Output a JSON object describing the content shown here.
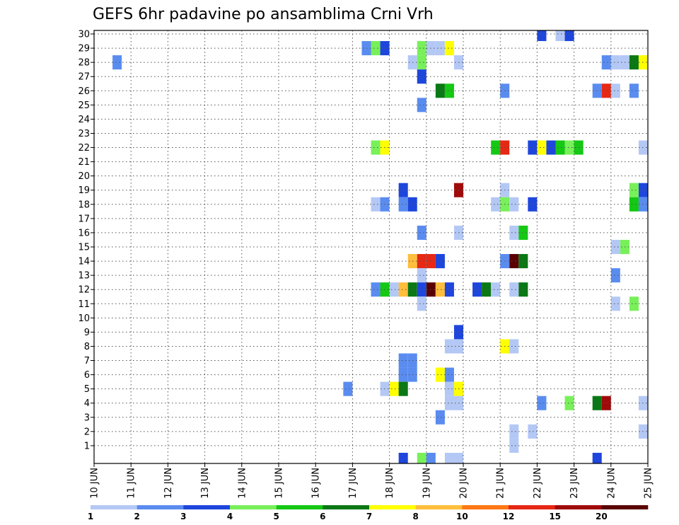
{
  "chart_data": {
    "type": "heatmap",
    "title": "GEFS 6hr padavine po ansamblima Crni Vrh",
    "xlabel": "",
    "ylabel": "",
    "x_ticks": [
      "10 JUN",
      "11 JUN",
      "12 JUN",
      "13 JUN",
      "14 JUN",
      "15 JUN",
      "16 JUN",
      "17 JUN",
      "18 JUN",
      "19 JUN",
      "20 JUN",
      "21 JUN",
      "22 JUN",
      "23 JUN",
      "24 JUN",
      "25 JUN"
    ],
    "y_ticks": [
      1,
      2,
      3,
      4,
      5,
      6,
      7,
      8,
      9,
      10,
      11,
      12,
      13,
      14,
      15,
      16,
      17,
      18,
      19,
      20,
      21,
      22,
      23,
      24,
      25,
      26,
      27,
      28,
      29,
      30
    ],
    "x_range_days": [
      0,
      15
    ],
    "y_range": [
      0,
      30
    ],
    "grid": true,
    "time_step_hours": 6,
    "colorbar": {
      "labels": [
        "1",
        "2",
        "3",
        "4",
        "5",
        "6",
        "7",
        "8",
        "10",
        "12",
        "15",
        "20"
      ],
      "colors": [
        "#b4c8f5",
        "#5a8cf0",
        "#1e46dc",
        "#78f05a",
        "#14c814",
        "#0a7814",
        "#ffff00",
        "#ffbe3c",
        "#ff7814",
        "#e62814",
        "#a00a0a",
        "#5a0000"
      ]
    },
    "cells": [
      {
        "member": 30,
        "day": 12.0,
        "level": 3
      },
      {
        "member": 30,
        "day": 12.5,
        "level": 1
      },
      {
        "member": 30,
        "day": 12.75,
        "level": 3
      },
      {
        "member": 29,
        "day": 7.25,
        "level": 2
      },
      {
        "member": 29,
        "day": 7.5,
        "level": 4
      },
      {
        "member": 29,
        "day": 7.75,
        "level": 3
      },
      {
        "member": 29,
        "day": 8.75,
        "level": 4
      },
      {
        "member": 29,
        "day": 9.0,
        "level": 1
      },
      {
        "member": 29,
        "day": 9.25,
        "level": 1
      },
      {
        "member": 29,
        "day": 9.5,
        "level": 7
      },
      {
        "member": 28,
        "day": 0.5,
        "level": 2
      },
      {
        "member": 28,
        "day": 8.5,
        "level": 1
      },
      {
        "member": 28,
        "day": 8.75,
        "level": 4
      },
      {
        "member": 28,
        "day": 9.75,
        "level": 1
      },
      {
        "member": 28,
        "day": 13.75,
        "level": 2
      },
      {
        "member": 28,
        "day": 14.0,
        "level": 1
      },
      {
        "member": 28,
        "day": 14.25,
        "level": 1
      },
      {
        "member": 28,
        "day": 14.5,
        "level": 6
      },
      {
        "member": 28,
        "day": 14.75,
        "level": 7
      },
      {
        "member": 27,
        "day": 8.75,
        "level": 3
      },
      {
        "member": 26,
        "day": 9.25,
        "level": 6
      },
      {
        "member": 26,
        "day": 9.5,
        "level": 5
      },
      {
        "member": 26,
        "day": 11.0,
        "level": 2
      },
      {
        "member": 26,
        "day": 13.5,
        "level": 2
      },
      {
        "member": 26,
        "day": 13.75,
        "level": 10
      },
      {
        "member": 26,
        "day": 14.0,
        "level": 1
      },
      {
        "member": 26,
        "day": 14.5,
        "level": 2
      },
      {
        "member": 25,
        "day": 8.75,
        "level": 2
      },
      {
        "member": 22,
        "day": 7.5,
        "level": 4
      },
      {
        "member": 22,
        "day": 7.75,
        "level": 7
      },
      {
        "member": 22,
        "day": 10.75,
        "level": 5
      },
      {
        "member": 22,
        "day": 11.0,
        "level": 10
      },
      {
        "member": 22,
        "day": 11.75,
        "level": 3
      },
      {
        "member": 22,
        "day": 12.0,
        "level": 7
      },
      {
        "member": 22,
        "day": 12.25,
        "level": 3
      },
      {
        "member": 22,
        "day": 12.5,
        "level": 5
      },
      {
        "member": 22,
        "day": 12.75,
        "level": 4
      },
      {
        "member": 22,
        "day": 13.0,
        "level": 5
      },
      {
        "member": 22,
        "day": 14.75,
        "level": 1
      },
      {
        "member": 19,
        "day": 8.25,
        "level": 3
      },
      {
        "member": 19,
        "day": 9.75,
        "level": 11
      },
      {
        "member": 19,
        "day": 11.0,
        "level": 1
      },
      {
        "member": 19,
        "day": 14.5,
        "level": 4
      },
      {
        "member": 19,
        "day": 14.75,
        "level": 3
      },
      {
        "member": 18,
        "day": 7.5,
        "level": 1
      },
      {
        "member": 18,
        "day": 7.75,
        "level": 2
      },
      {
        "member": 18,
        "day": 8.25,
        "level": 2
      },
      {
        "member": 18,
        "day": 8.5,
        "level": 3
      },
      {
        "member": 18,
        "day": 10.75,
        "level": 1
      },
      {
        "member": 18,
        "day": 11.0,
        "level": 4
      },
      {
        "member": 18,
        "day": 11.25,
        "level": 1
      },
      {
        "member": 18,
        "day": 11.75,
        "level": 3
      },
      {
        "member": 18,
        "day": 14.5,
        "level": 5
      },
      {
        "member": 18,
        "day": 14.75,
        "level": 2
      },
      {
        "member": 16,
        "day": 8.75,
        "level": 2
      },
      {
        "member": 16,
        "day": 9.75,
        "level": 1
      },
      {
        "member": 16,
        "day": 11.25,
        "level": 1
      },
      {
        "member": 16,
        "day": 11.5,
        "level": 5
      },
      {
        "member": 15,
        "day": 14.0,
        "level": 1
      },
      {
        "member": 15,
        "day": 14.25,
        "level": 4
      },
      {
        "member": 14,
        "day": 8.5,
        "level": 8
      },
      {
        "member": 14,
        "day": 8.75,
        "level": 10
      },
      {
        "member": 14,
        "day": 9.0,
        "level": 10
      },
      {
        "member": 14,
        "day": 9.25,
        "level": 3
      },
      {
        "member": 14,
        "day": 11.0,
        "level": 2
      },
      {
        "member": 14,
        "day": 11.25,
        "level": 12
      },
      {
        "member": 14,
        "day": 11.5,
        "level": 6
      },
      {
        "member": 13,
        "day": 8.75,
        "level": 1
      },
      {
        "member": 13,
        "day": 14.0,
        "level": 2
      },
      {
        "member": 12,
        "day": 7.5,
        "level": 2
      },
      {
        "member": 12,
        "day": 7.75,
        "level": 5
      },
      {
        "member": 12,
        "day": 8.0,
        "level": 1
      },
      {
        "member": 12,
        "day": 8.25,
        "level": 8
      },
      {
        "member": 12,
        "day": 8.5,
        "level": 6
      },
      {
        "member": 12,
        "day": 8.75,
        "level": 3
      },
      {
        "member": 12,
        "day": 9.0,
        "level": 12
      },
      {
        "member": 12,
        "day": 9.25,
        "level": 8
      },
      {
        "member": 12,
        "day": 9.5,
        "level": 3
      },
      {
        "member": 12,
        "day": 10.25,
        "level": 3
      },
      {
        "member": 12,
        "day": 10.5,
        "level": 6
      },
      {
        "member": 12,
        "day": 10.75,
        "level": 1
      },
      {
        "member": 12,
        "day": 11.25,
        "level": 1
      },
      {
        "member": 12,
        "day": 11.5,
        "level": 6
      },
      {
        "member": 11,
        "day": 8.75,
        "level": 1
      },
      {
        "member": 11,
        "day": 14.0,
        "level": 1
      },
      {
        "member": 11,
        "day": 14.5,
        "level": 4
      },
      {
        "member": 9,
        "day": 9.75,
        "level": 3
      },
      {
        "member": 8,
        "day": 9.5,
        "level": 1
      },
      {
        "member": 8,
        "day": 9.75,
        "level": 1
      },
      {
        "member": 8,
        "day": 11.0,
        "level": 7
      },
      {
        "member": 8,
        "day": 11.25,
        "level": 1
      },
      {
        "member": 7,
        "day": 8.25,
        "level": 2
      },
      {
        "member": 7,
        "day": 8.5,
        "level": 2
      },
      {
        "member": 6,
        "day": 8.25,
        "level": 2
      },
      {
        "member": 6,
        "day": 8.5,
        "level": 2
      },
      {
        "member": 6,
        "day": 9.25,
        "level": 7
      },
      {
        "member": 6,
        "day": 9.5,
        "level": 2
      },
      {
        "member": 5,
        "day": 6.75,
        "level": 2
      },
      {
        "member": 5,
        "day": 7.75,
        "level": 1
      },
      {
        "member": 5,
        "day": 8.0,
        "level": 7
      },
      {
        "member": 5,
        "day": 8.25,
        "level": 6
      },
      {
        "member": 5,
        "day": 9.5,
        "level": 1
      },
      {
        "member": 5,
        "day": 9.75,
        "level": 7
      },
      {
        "member": 4,
        "day": 9.5,
        "level": 1
      },
      {
        "member": 4,
        "day": 9.75,
        "level": 1
      },
      {
        "member": 4,
        "day": 12.0,
        "level": 2
      },
      {
        "member": 4,
        "day": 12.75,
        "level": 4
      },
      {
        "member": 4,
        "day": 13.5,
        "level": 6
      },
      {
        "member": 4,
        "day": 13.75,
        "level": 11
      },
      {
        "member": 4,
        "day": 14.75,
        "level": 1
      },
      {
        "member": 3,
        "day": 9.25,
        "level": 2
      },
      {
        "member": 2,
        "day": 11.25,
        "level": 1
      },
      {
        "member": 2,
        "day": 11.75,
        "level": 1
      },
      {
        "member": 2,
        "day": 14.75,
        "level": 1
      },
      {
        "member": 1,
        "day": 11.25,
        "level": 1
      },
      {
        "member": 0,
        "day": 8.25,
        "level": 3
      },
      {
        "member": 0,
        "day": 8.75,
        "level": 4
      },
      {
        "member": 0,
        "day": 9.0,
        "level": 2
      },
      {
        "member": 0,
        "day": 9.5,
        "level": 1
      },
      {
        "member": 0,
        "day": 9.75,
        "level": 1
      },
      {
        "member": 0,
        "day": 13.5,
        "level": 3
      }
    ]
  }
}
